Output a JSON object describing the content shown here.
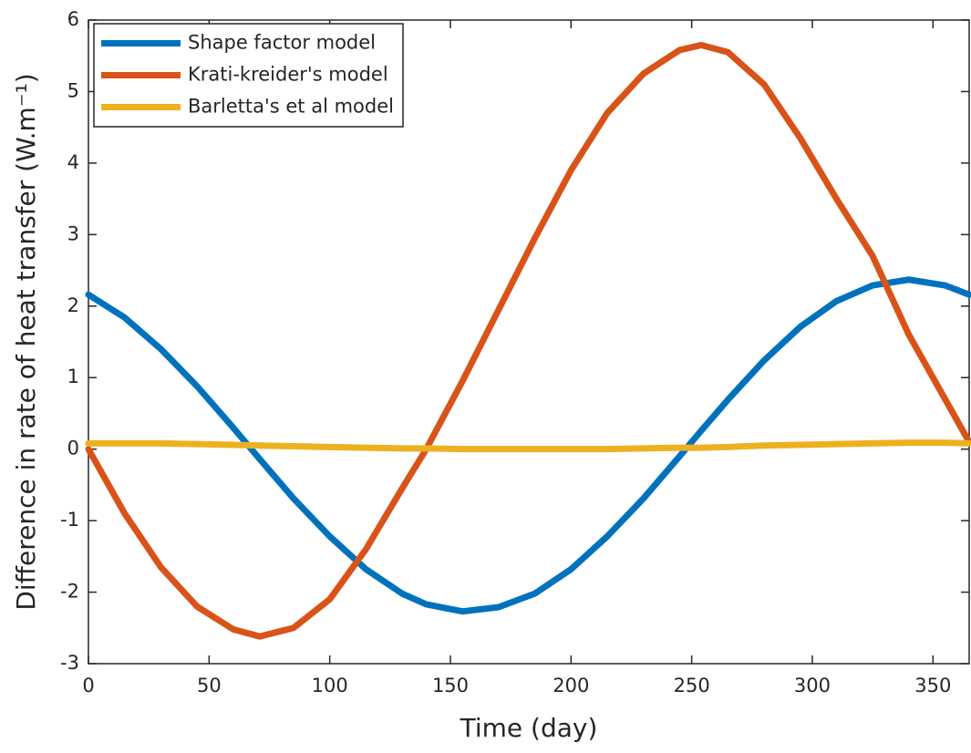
{
  "chart_data": {
    "type": "line",
    "xlabel": "Time (day)",
    "ylabel": "Difference in rate of heat transfer (W.m⁻¹)",
    "x": [
      0,
      15,
      30,
      45,
      60,
      71,
      85,
      100,
      115,
      130,
      140,
      155,
      170,
      185,
      200,
      215,
      230,
      245,
      254,
      265,
      280,
      295,
      310,
      325,
      340,
      355,
      365
    ],
    "series": [
      {
        "name": "Shape factor model",
        "color": "#0072bd",
        "values": [
          2.16,
          1.84,
          1.4,
          0.88,
          0.3,
          -0.14,
          -0.69,
          -1.22,
          -1.68,
          -2.02,
          -2.17,
          -2.27,
          -2.21,
          -2.02,
          -1.68,
          -1.22,
          -0.69,
          -0.1,
          0.26,
          0.69,
          1.24,
          1.71,
          2.07,
          2.29,
          2.37,
          2.29,
          2.16
        ]
      },
      {
        "name": "Krati-kreider's model",
        "color": "#d95319",
        "values": [
          0,
          -0.9,
          -1.65,
          -2.2,
          -2.52,
          -2.62,
          -2.5,
          -2.1,
          -1.4,
          -0.55,
          0,
          0.95,
          1.95,
          2.95,
          3.9,
          4.7,
          5.25,
          5.58,
          5.65,
          5.55,
          5.1,
          4.35,
          3.5,
          2.7,
          1.6,
          0.7,
          0.1
        ]
      },
      {
        "name": "Barletta's et al model",
        "color": "#edb120",
        "values": [
          0.08,
          0.08,
          0.08,
          0.07,
          0.06,
          0.05,
          0.04,
          0.03,
          0.02,
          0.01,
          0.01,
          0,
          0,
          0,
          0,
          0,
          0.01,
          0.02,
          0.02,
          0.03,
          0.05,
          0.06,
          0.07,
          0.08,
          0.09,
          0.09,
          0.08
        ]
      }
    ],
    "xlim": [
      0,
      365
    ],
    "xticks": [
      0,
      50,
      100,
      150,
      200,
      250,
      300,
      350
    ],
    "ylim": [
      -3,
      6
    ],
    "yticks": [
      -3,
      -2,
      -1,
      0,
      1,
      2,
      3,
      4,
      5,
      6
    ],
    "legend": "top-left",
    "grid": false
  }
}
